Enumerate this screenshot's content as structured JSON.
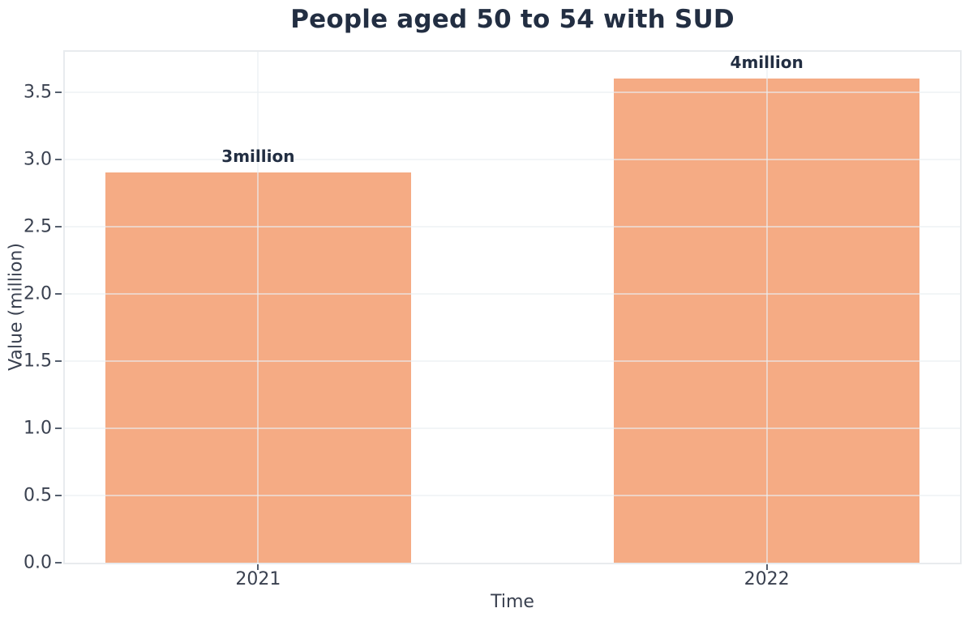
{
  "chart_data": {
    "type": "bar",
    "title": "People aged 50 to 54 with SUD",
    "xlabel": "Time",
    "ylabel": "Value (million)",
    "categories": [
      "2021",
      "2022"
    ],
    "x": [
      2021,
      2022
    ],
    "values": [
      2.9,
      3.6
    ],
    "bar_labels": [
      "3million",
      "4million"
    ],
    "yticks": [
      0.0,
      0.5,
      1.0,
      1.5,
      2.0,
      2.5,
      3.0,
      3.5
    ],
    "ytick_labels": [
      "0.0",
      "0.5",
      "1.0",
      "1.5",
      "2.0",
      "2.5",
      "3.0",
      "3.5"
    ],
    "ylim": [
      0,
      3.8
    ],
    "xlim": [
      2020.62,
      2022.38
    ],
    "bar_width": 0.6,
    "grid": true,
    "legend": false,
    "bar_color": "#f5ab84",
    "colors": {
      "title_text": "#222e42",
      "annotation_text": "#222e42",
      "tick_text": "#3a4150",
      "plot_border": "#e8ebee",
      "background": "#ffffff"
    }
  }
}
